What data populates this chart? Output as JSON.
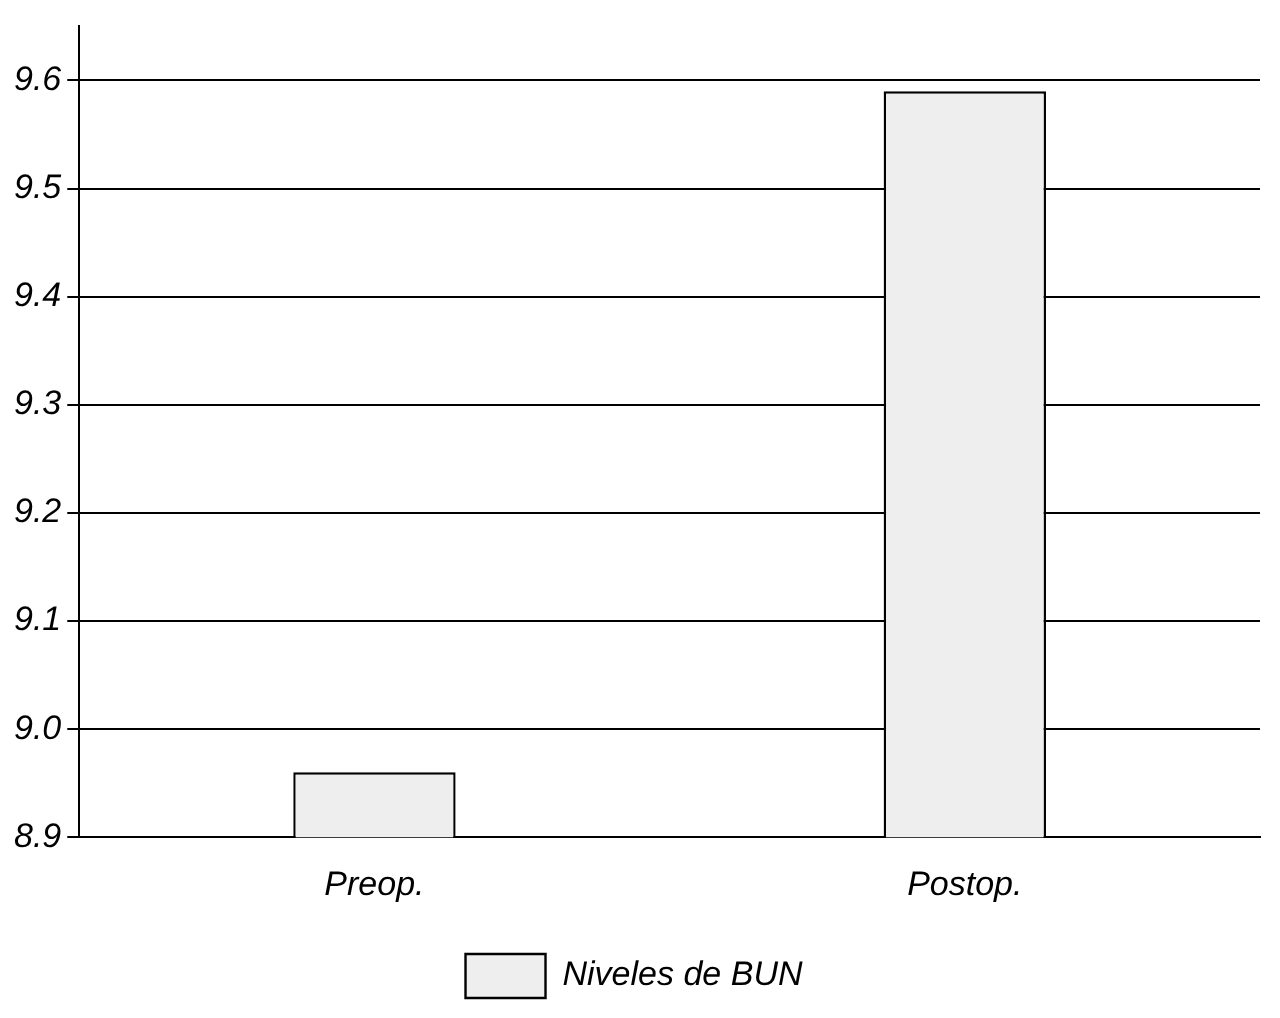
{
  "chart_data": {
    "type": "bar",
    "categories": [
      "Preop.",
      "Postop."
    ],
    "series": [
      {
        "name": "Niveles de BUN",
        "color": "#eeeeee",
        "values": [
          8.96,
          9.59
        ]
      }
    ],
    "ylim": [
      8.9,
      9.65
    ],
    "yticks": [
      8.9,
      {
        "value": 9,
        "label": "9.0"
      },
      9.1,
      9.2,
      9.3,
      9.4,
      9.5,
      9.6
    ],
    "grid": "y",
    "legend": "bottom"
  }
}
